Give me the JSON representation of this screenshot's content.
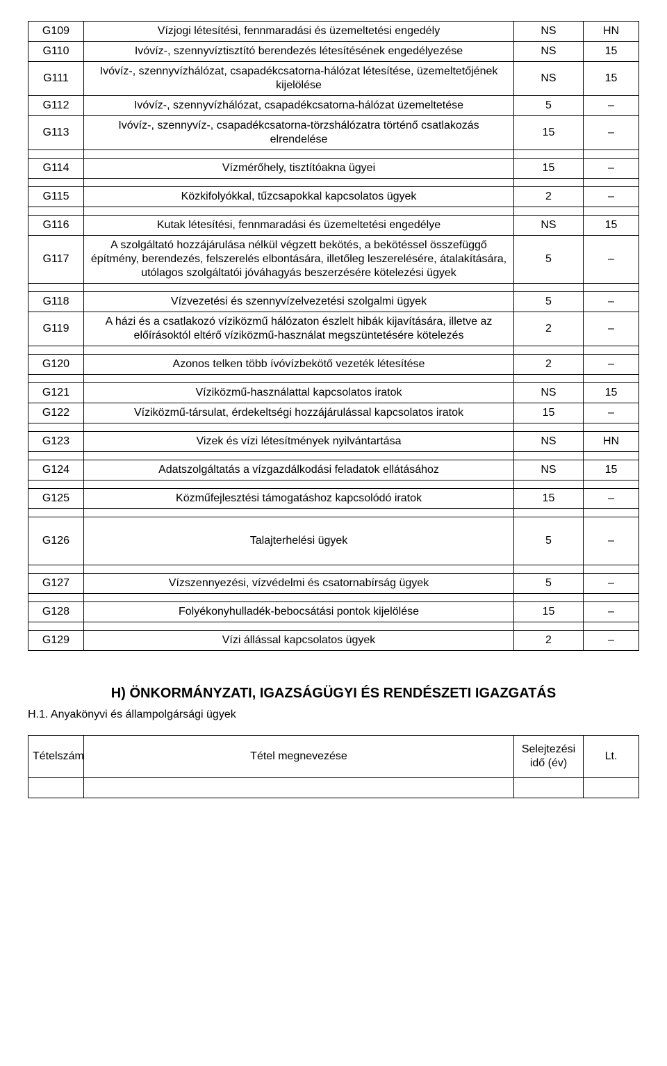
{
  "rows": [
    {
      "code": "G109",
      "desc": "Vízjogi létesítési, fennmaradási és üzemeltetési engedély",
      "c3": "NS",
      "c4": "HN"
    },
    {
      "code": "G110",
      "desc": "Ivóvíz-, szennyvíztisztító berendezés létesítésének engedélyezése",
      "c3": "NS",
      "c4": "15"
    },
    {
      "code": "G111",
      "desc": "Ivóvíz-, szennyvízhálózat, csapadékcsatorna-hálózat létesítése, üzemeltetőjének kijelölése",
      "c3": "NS",
      "c4": "15"
    },
    {
      "code": "G112",
      "desc": "Ivóvíz-, szennyvízhálózat, csapadékcsatorna-hálózat üzemeltetése",
      "c3": "5",
      "c4": "–"
    },
    {
      "code": "G113",
      "desc": "Ivóvíz-, szennyvíz-, csapadékcsatorna-törzshálózatra történő csatlakozás elrendelése",
      "c3": "15",
      "c4": "–"
    },
    {
      "spacer": true
    },
    {
      "code": "G114",
      "desc": "Vízmérőhely, tisztítóakna ügyei",
      "c3": "15",
      "c4": "–"
    },
    {
      "spacer": true
    },
    {
      "code": "G115",
      "desc": "Közkifolyókkal, tűzcsapokkal kapcsolatos ügyek",
      "c3": "2",
      "c4": "–"
    },
    {
      "spacer": true
    },
    {
      "code": "G116",
      "desc": "Kutak létesítési, fennmaradási és üzemeltetési engedélye",
      "c3": "NS",
      "c4": "15"
    },
    {
      "code": "G117",
      "desc": "A szolgáltató hozzájárulása nélkül végzett bekötés, a bekötéssel összefüggő építmény, berendezés, felszerelés elbontására, illetőleg leszerelésére, átalakítására, utólagos szolgáltatói jóváhagyás beszerzésére kötelezési ügyek",
      "c3": "5",
      "c4": "–"
    },
    {
      "spacer": true
    },
    {
      "code": "G118",
      "desc": "Vízvezetési és szennyvízelvezetési szolgalmi ügyek",
      "c3": "5",
      "c4": "–"
    },
    {
      "code": "G119",
      "desc": "A házi és a csatlakozó víziközmű hálózaton észlelt hibák kijavítására, illetve az előírásoktól eltérő víziközmű-használat megszüntetésére kötelezés",
      "c3": "2",
      "c4": "–"
    },
    {
      "spacer": true
    },
    {
      "code": "G120",
      "desc": "Azonos telken több ívóvízbekötő vezeték létesítése",
      "c3": "2",
      "c4": "–"
    },
    {
      "spacer": true
    },
    {
      "code": "G121",
      "desc": "Víziközmű-használattal kapcsolatos iratok",
      "c3": "NS",
      "c4": "15"
    },
    {
      "code": "G122",
      "desc": "Víziközmű-társulat, érdekeltségi hozzájárulással kapcsolatos iratok",
      "c3": "15",
      "c4": "–"
    },
    {
      "spacer": true
    },
    {
      "code": "G123",
      "desc": "Vizek és vízi létesítmények nyilvántartása",
      "c3": "NS",
      "c4": "HN"
    },
    {
      "spacer": true
    },
    {
      "code": "G124",
      "desc": "Adatszolgáltatás a vízgazdálkodási feladatok ellátásához",
      "c3": "NS",
      "c4": "15"
    },
    {
      "spacer": true
    },
    {
      "code": "G125",
      "desc": "Közműfejlesztési támogatáshoz kapcsolódó iratok",
      "c3": "15",
      "c4": "–"
    },
    {
      "spacer": true
    },
    {
      "code": "G126",
      "desc": "Talajterhelési ügyek",
      "c3": "5",
      "c4": "–",
      "tall": true
    },
    {
      "spacer": true
    },
    {
      "code": "G127",
      "desc": "Vízszennyezési, vízvédelmi és csatornabírság ügyek",
      "c3": "5",
      "c4": "–"
    },
    {
      "spacer": true
    },
    {
      "code": "G128",
      "desc": "Folyékonyhulladék-bebocsátási pontok kijelölése",
      "c3": "15",
      "c4": "–"
    },
    {
      "spacer": true
    },
    {
      "code": "G129",
      "desc": "Vízi állással kapcsolatos ügyek",
      "c3": "2",
      "c4": "–"
    }
  ],
  "section_title": "H) ÖNKORMÁNYZATI, IGAZSÁGÜGYI ÉS RENDÉSZETI IGAZGATÁS",
  "subsection": "H.1. Anyakönyvi és állampolgársági ügyek",
  "footer_table": {
    "h1": "Tételszám",
    "h2": "Tétel megnevezése",
    "h3": "Selejtezési idő (év)",
    "h4": "Lt."
  }
}
